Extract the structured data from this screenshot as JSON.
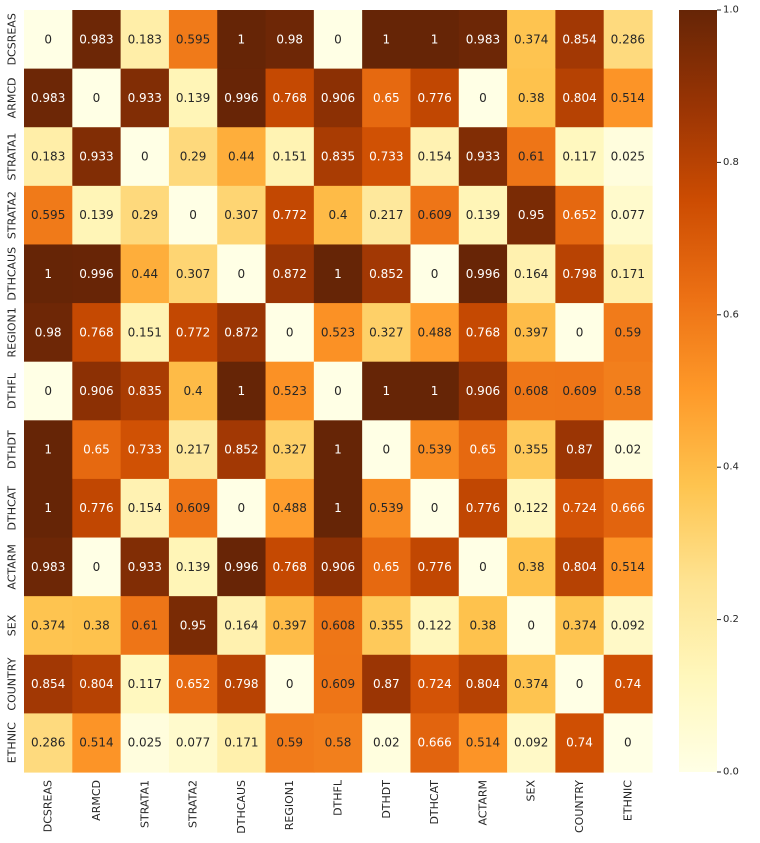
{
  "chart_data": {
    "type": "heatmap",
    "title": "",
    "xlabel": "",
    "ylabel": "",
    "rows": [
      "DCSREAS",
      "ARMCD",
      "STRATA1",
      "STRATA2",
      "DTHCAUS",
      "REGION1",
      "DTHFL",
      "DTHDT",
      "DTHCAT",
      "ACTARM",
      "SEX",
      "COUNTRY",
      "ETHNIC"
    ],
    "columns": [
      "DCSREAS",
      "ARMCD",
      "STRATA1",
      "STRATA2",
      "DTHCAUS",
      "REGION1",
      "DTHFL",
      "DTHDT",
      "DTHCAT",
      "ACTARM",
      "SEX",
      "COUNTRY",
      "ETHNIC"
    ],
    "values": [
      [
        0,
        0.983,
        0.183,
        0.595,
        1,
        0.98,
        0,
        1,
        1,
        0.983,
        0.374,
        0.854,
        0.286
      ],
      [
        0.983,
        0,
        0.933,
        0.139,
        0.996,
        0.768,
        0.906,
        0.65,
        0.776,
        0,
        0.38,
        0.804,
        0.514
      ],
      [
        0.183,
        0.933,
        0,
        0.29,
        0.44,
        0.151,
        0.835,
        0.733,
        0.154,
        0.933,
        0.61,
        0.117,
        0.025
      ],
      [
        0.595,
        0.139,
        0.29,
        0,
        0.307,
        0.772,
        0.4,
        0.217,
        0.609,
        0.139,
        0.95,
        0.652,
        0.077
      ],
      [
        1,
        0.996,
        0.44,
        0.307,
        0,
        0.872,
        1,
        0.852,
        0,
        0.996,
        0.164,
        0.798,
        0.171
      ],
      [
        0.98,
        0.768,
        0.151,
        0.772,
        0.872,
        0,
        0.523,
        0.327,
        0.488,
        0.768,
        0.397,
        0,
        0.59
      ],
      [
        0,
        0.906,
        0.835,
        0.4,
        1,
        0.523,
        0,
        1,
        1,
        0.906,
        0.608,
        0.609,
        0.58
      ],
      [
        1,
        0.65,
        0.733,
        0.217,
        0.852,
        0.327,
        1,
        0,
        0.539,
        0.65,
        0.355,
        0.87,
        0.02
      ],
      [
        1,
        0.776,
        0.154,
        0.609,
        0,
        0.488,
        1,
        0.539,
        0,
        0.776,
        0.122,
        0.724,
        0.666
      ],
      [
        0.983,
        0,
        0.933,
        0.139,
        0.996,
        0.768,
        0.906,
        0.65,
        0.776,
        0,
        0.38,
        0.804,
        0.514
      ],
      [
        0.374,
        0.38,
        0.61,
        0.95,
        0.164,
        0.397,
        0.608,
        0.355,
        0.122,
        0.38,
        0,
        0.374,
        0.092
      ],
      [
        0.854,
        0.804,
        0.117,
        0.652,
        0.798,
        0,
        0.609,
        0.87,
        0.724,
        0.804,
        0.374,
        0,
        0.74
      ],
      [
        0.286,
        0.514,
        0.025,
        0.077,
        0.171,
        0.59,
        0.58,
        0.02,
        0.666,
        0.514,
        0.092,
        0.74,
        0
      ]
    ],
    "value_range": [
      0,
      1
    ],
    "colorbar": {
      "ticks": [
        0,
        0.2,
        0.4,
        0.6,
        0.8,
        1
      ],
      "tick_labels": [
        "0.0",
        "0.2",
        "0.4",
        "0.6",
        "0.8",
        "1.0"
      ]
    },
    "colormap": "YlOrBr",
    "colormap_stops": [
      "#ffffe5",
      "#fff7bc",
      "#fee391",
      "#fec44f",
      "#fe9929",
      "#ec7014",
      "#cc4c02",
      "#993404",
      "#662506"
    ],
    "legend": "right",
    "grid": false
  }
}
